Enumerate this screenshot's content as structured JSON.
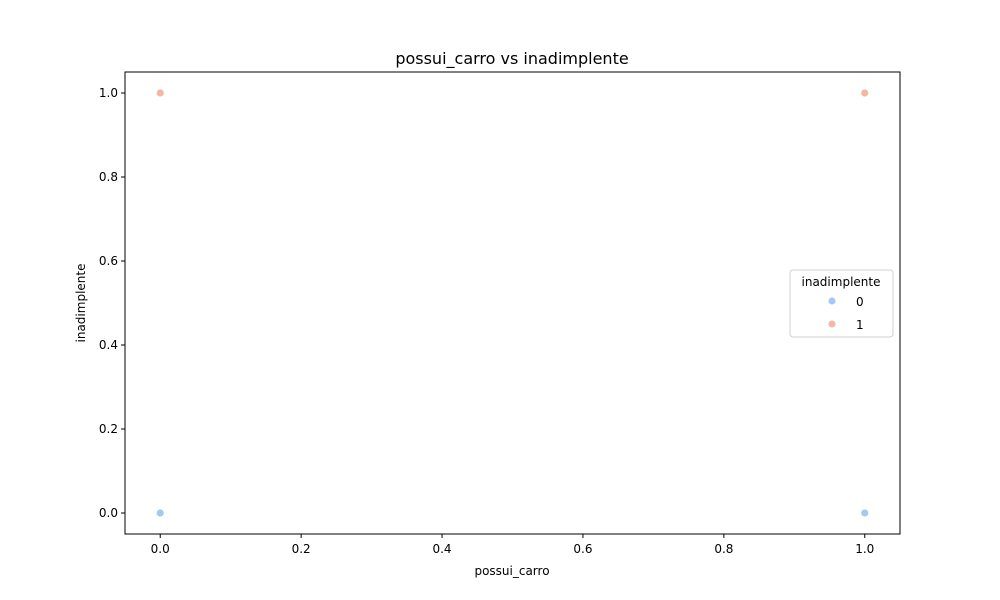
{
  "chart_data": {
    "type": "scatter",
    "title": "possui_carro vs inadimplente",
    "xlabel": "possui_carro",
    "ylabel": "inadimplente",
    "xlim": [
      -0.05,
      1.05
    ],
    "ylim": [
      -0.05,
      1.05
    ],
    "xticks": [
      0.0,
      0.2,
      0.4,
      0.6,
      0.8,
      1.0
    ],
    "yticks": [
      0.0,
      0.2,
      0.4,
      0.6,
      0.8,
      1.0
    ],
    "xtick_labels": [
      "0.0",
      "0.2",
      "0.4",
      "0.6",
      "0.8",
      "1.0"
    ],
    "ytick_labels": [
      "0.0",
      "0.2",
      "0.4",
      "0.6",
      "0.8",
      "1.0"
    ],
    "grid": false,
    "legend": {
      "title": "inadimplente",
      "placement": "center-right"
    },
    "series": [
      {
        "name": "0",
        "color": "#a1c9f4",
        "points": [
          {
            "x": 0.0,
            "y": 0.0
          },
          {
            "x": 1.0,
            "y": 0.0
          }
        ]
      },
      {
        "name": "1",
        "color": "#f5b7a0",
        "points": [
          {
            "x": 0.0,
            "y": 1.0
          },
          {
            "x": 1.0,
            "y": 1.0
          }
        ]
      }
    ]
  }
}
